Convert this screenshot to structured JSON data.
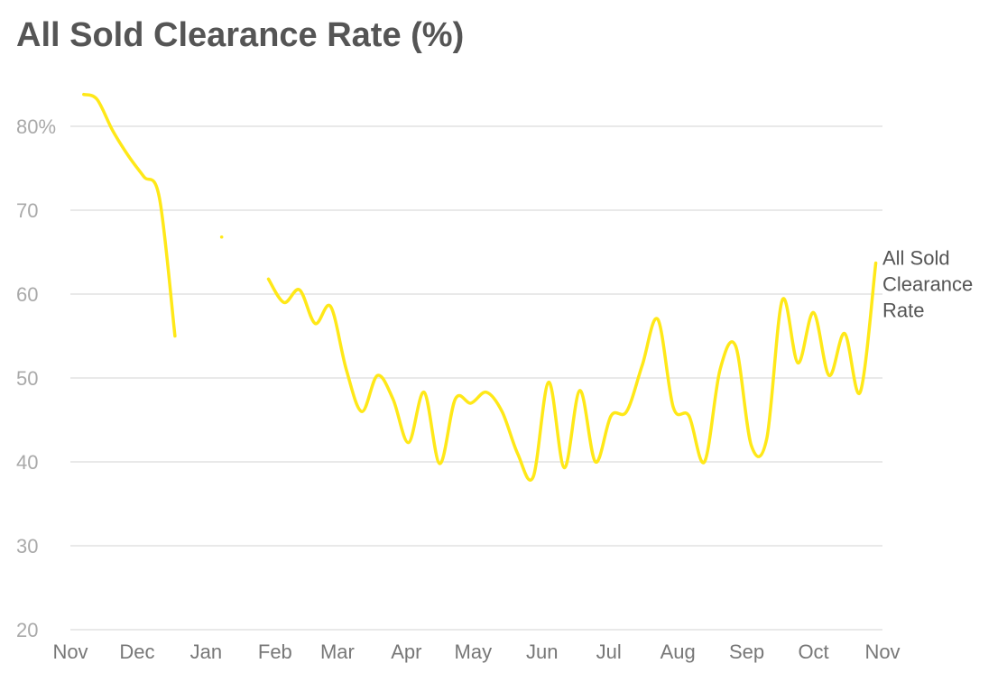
{
  "chart_data": {
    "type": "line",
    "title": "All Sold Clearance Rate (%)",
    "xlabel": "",
    "ylabel": "",
    "ylim": [
      20,
      85
    ],
    "grid": true,
    "legend": "inline-right",
    "y_ticks": [
      {
        "value": 20,
        "label": "20"
      },
      {
        "value": 30,
        "label": "30"
      },
      {
        "value": 40,
        "label": "40"
      },
      {
        "value": 50,
        "label": "50"
      },
      {
        "value": 60,
        "label": "60"
      },
      {
        "value": 70,
        "label": "70"
      },
      {
        "value": 80,
        "label": "80%"
      }
    ],
    "x_ticks": [
      {
        "date": "2022-11-01",
        "label": "Nov"
      },
      {
        "date": "2022-12-01",
        "label": "Dec"
      },
      {
        "date": "2023-01-01",
        "label": "Jan"
      },
      {
        "date": "2023-02-01",
        "label": "Feb"
      },
      {
        "date": "2023-03-01",
        "label": "Mar"
      },
      {
        "date": "2023-04-01",
        "label": "Apr"
      },
      {
        "date": "2023-05-01",
        "label": "May"
      },
      {
        "date": "2023-06-01",
        "label": "Jun"
      },
      {
        "date": "2023-07-01",
        "label": "Jul"
      },
      {
        "date": "2023-08-01",
        "label": "Aug"
      },
      {
        "date": "2023-09-01",
        "label": "Sep"
      },
      {
        "date": "2023-10-01",
        "label": "Oct"
      },
      {
        "date": "2023-11-01",
        "label": "Nov"
      }
    ],
    "series": [
      {
        "name": "All Sold Clearance Rate",
        "label_lines": [
          "All Sold",
          "Clearance",
          "Rate"
        ],
        "color": "#ffe818",
        "points": [
          {
            "date": "2022-11-07",
            "y": 83.8
          },
          {
            "date": "2022-11-13",
            "y": 83.2
          },
          {
            "date": "2022-11-20",
            "y": 79.5
          },
          {
            "date": "2022-11-27",
            "y": 76.5
          },
          {
            "date": "2022-12-04",
            "y": 74.0
          },
          {
            "date": "2022-12-11",
            "y": 71.5
          },
          {
            "date": "2022-12-18",
            "y": 55.0
          },
          {
            "date": "2022-12-25",
            "y": null
          },
          {
            "date": "2023-01-08",
            "y": 66.8
          },
          {
            "date": "2023-01-15",
            "y": null
          },
          {
            "date": "2023-01-29",
            "y": 61.8
          },
          {
            "date": "2023-02-05",
            "y": 59.0
          },
          {
            "date": "2023-02-12",
            "y": 60.5
          },
          {
            "date": "2023-02-19",
            "y": 56.5
          },
          {
            "date": "2023-02-26",
            "y": 58.5
          },
          {
            "date": "2023-03-05",
            "y": 51.0
          },
          {
            "date": "2023-03-12",
            "y": 46.0
          },
          {
            "date": "2023-03-19",
            "y": 50.3
          },
          {
            "date": "2023-03-26",
            "y": 47.5
          },
          {
            "date": "2023-04-02",
            "y": 42.3
          },
          {
            "date": "2023-04-09",
            "y": 48.3
          },
          {
            "date": "2023-04-16",
            "y": 39.8
          },
          {
            "date": "2023-04-23",
            "y": 47.5
          },
          {
            "date": "2023-04-30",
            "y": 47.0
          },
          {
            "date": "2023-05-07",
            "y": 48.3
          },
          {
            "date": "2023-05-14",
            "y": 46.0
          },
          {
            "date": "2023-05-21",
            "y": 41.0
          },
          {
            "date": "2023-05-28",
            "y": 38.2
          },
          {
            "date": "2023-06-04",
            "y": 49.5
          },
          {
            "date": "2023-06-11",
            "y": 39.3
          },
          {
            "date": "2023-06-18",
            "y": 48.5
          },
          {
            "date": "2023-06-25",
            "y": 40.0
          },
          {
            "date": "2023-07-02",
            "y": 45.5
          },
          {
            "date": "2023-07-09",
            "y": 46.0
          },
          {
            "date": "2023-07-16",
            "y": 51.5
          },
          {
            "date": "2023-07-23",
            "y": 57.0
          },
          {
            "date": "2023-07-30",
            "y": 46.5
          },
          {
            "date": "2023-08-06",
            "y": 45.5
          },
          {
            "date": "2023-08-13",
            "y": 40.0
          },
          {
            "date": "2023-08-20",
            "y": 51.0
          },
          {
            "date": "2023-08-27",
            "y": 53.8
          },
          {
            "date": "2023-09-03",
            "y": 42.0
          },
          {
            "date": "2023-09-10",
            "y": 42.8
          },
          {
            "date": "2023-09-17",
            "y": 59.3
          },
          {
            "date": "2023-09-24",
            "y": 51.8
          },
          {
            "date": "2023-10-01",
            "y": 57.8
          },
          {
            "date": "2023-10-08",
            "y": 50.3
          },
          {
            "date": "2023-10-15",
            "y": 55.3
          },
          {
            "date": "2023-10-22",
            "y": 48.3
          },
          {
            "date": "2023-10-29",
            "y": 63.7
          }
        ]
      }
    ]
  }
}
